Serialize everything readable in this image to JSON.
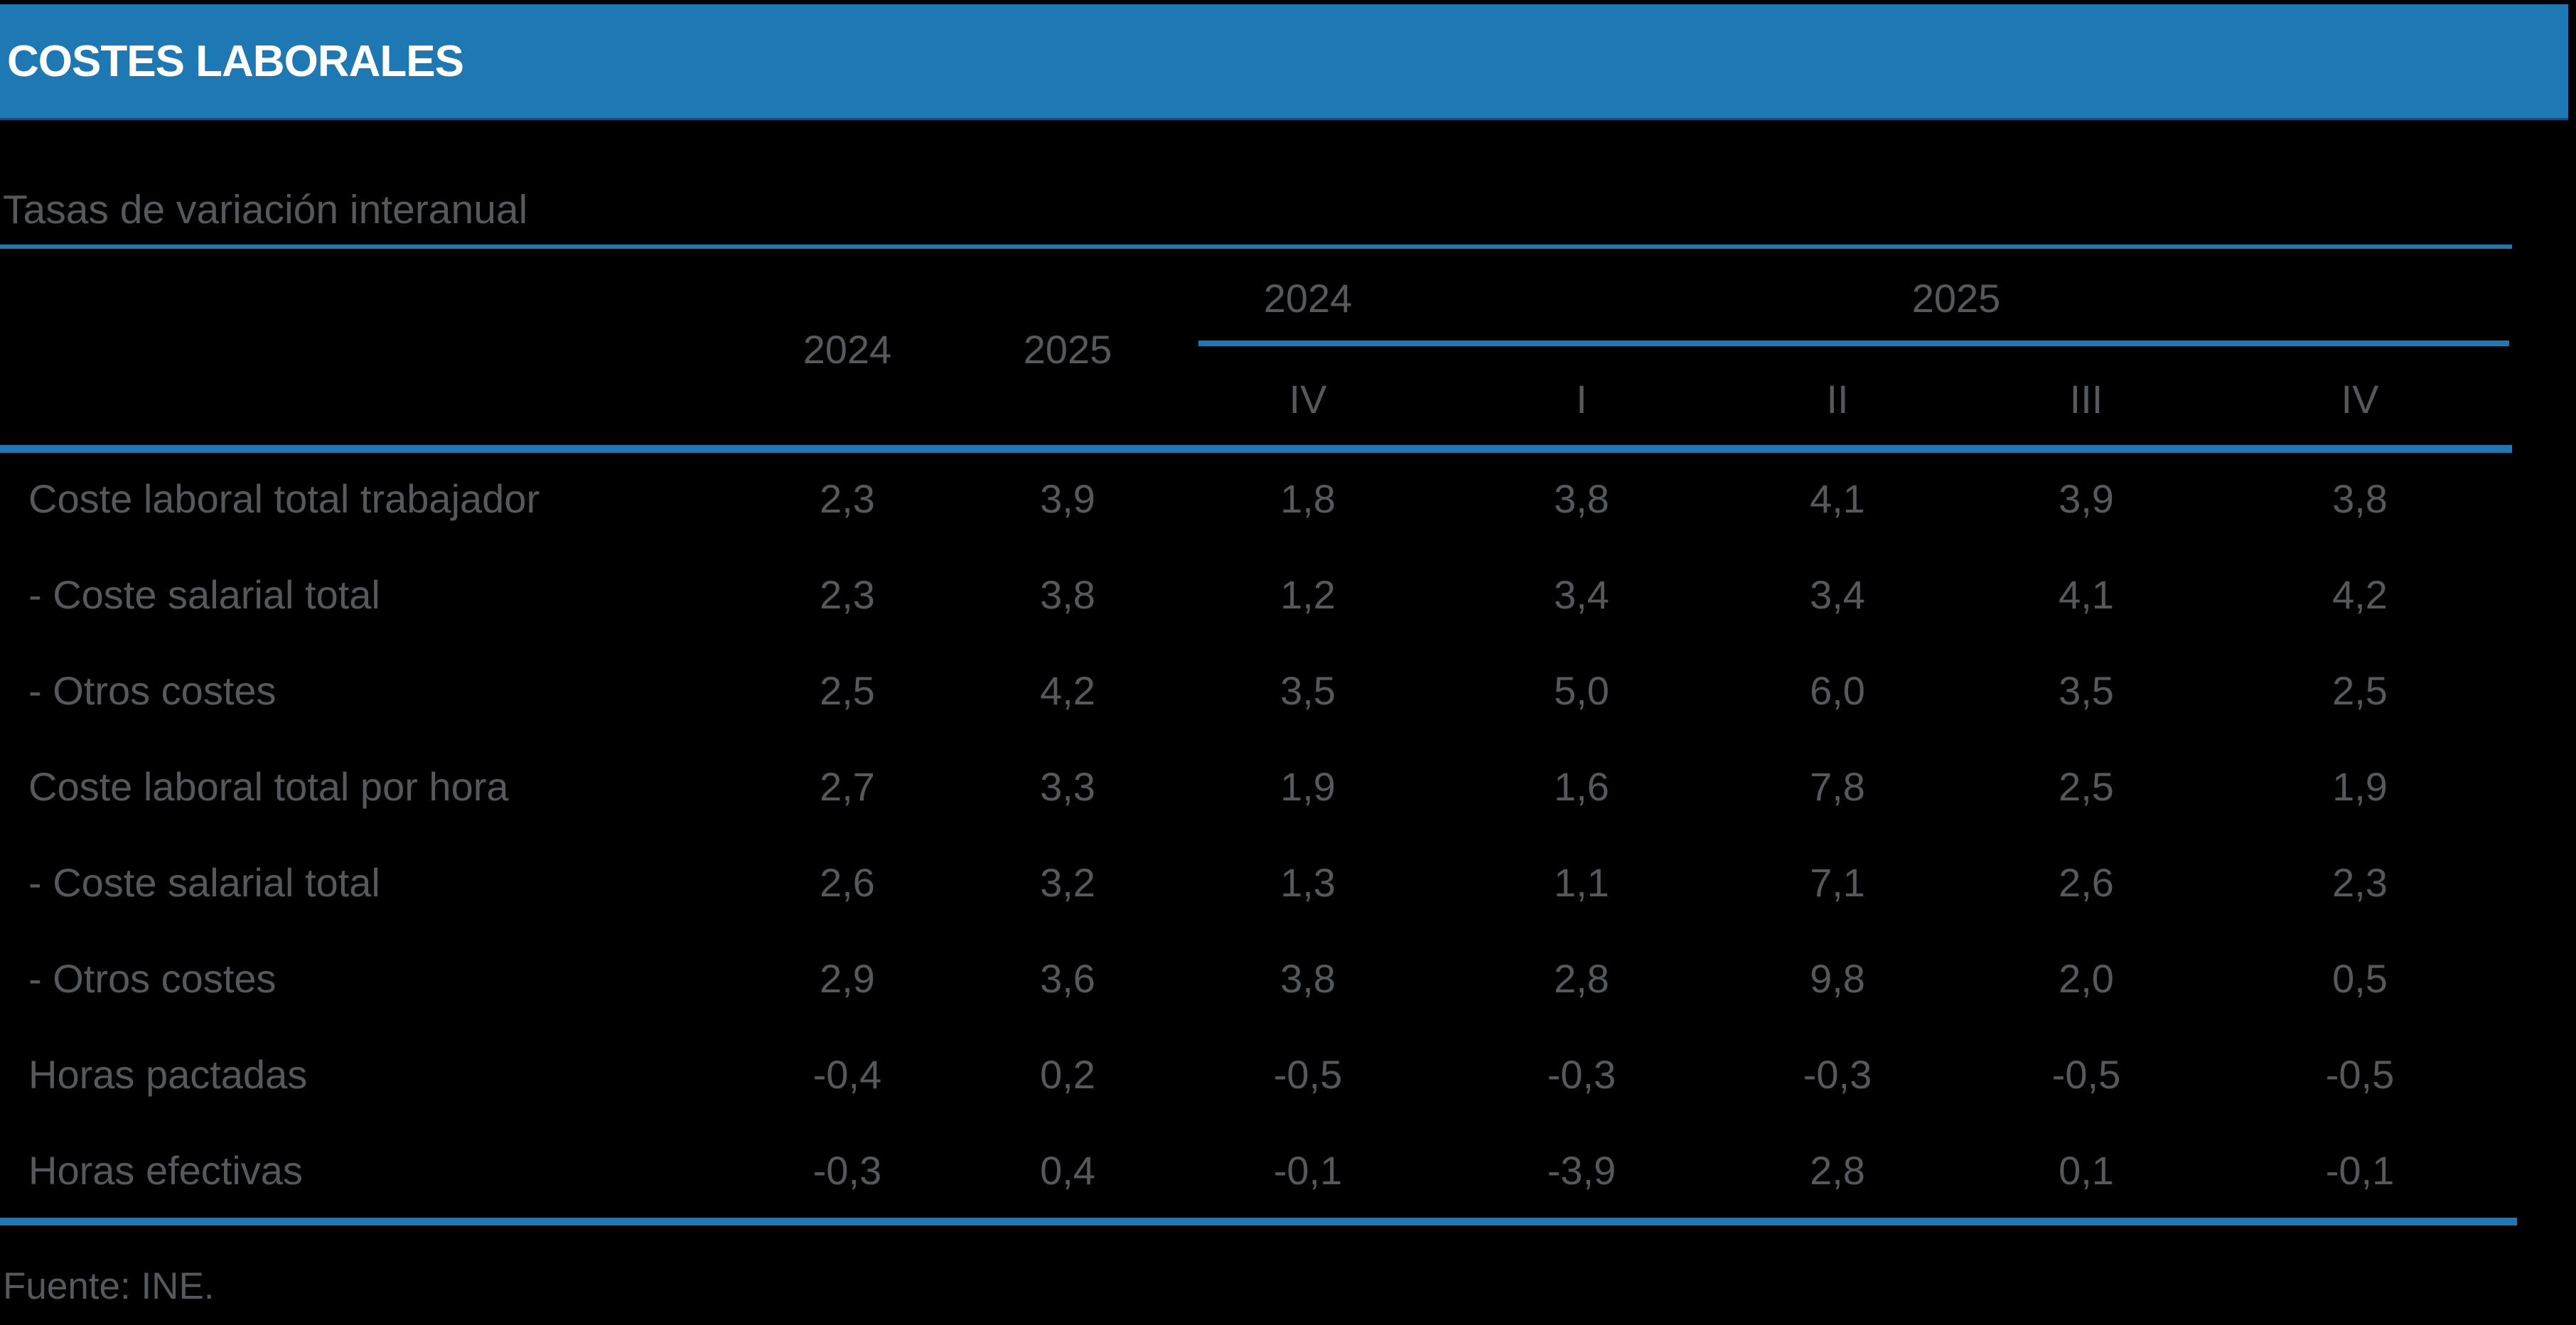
{
  "header": {
    "title": "COSTES LABORALES"
  },
  "subtitle": "Tasas de variación interanual",
  "table": {
    "annual": [
      "2024",
      "2025"
    ],
    "groups": [
      {
        "year": "2024"
      },
      {
        "year": "2025"
      }
    ],
    "quarters": [
      "IV",
      "I",
      "II",
      "III",
      "IV"
    ],
    "rows": [
      {
        "label": "Coste laboral total trabajador",
        "values": [
          "2,3",
          "3,9",
          "1,8",
          "3,8",
          "4,1",
          "3,9",
          "3,8"
        ]
      },
      {
        "label": "- Coste salarial total",
        "values": [
          "2,3",
          "3,8",
          "1,2",
          "3,4",
          "3,4",
          "4,1",
          "4,2"
        ]
      },
      {
        "label": "- Otros costes",
        "values": [
          "2,5",
          "4,2",
          "3,5",
          "5,0",
          "6,0",
          "3,5",
          "2,5"
        ]
      },
      {
        "label": "Coste laboral total por hora",
        "values": [
          "2,7",
          "3,3",
          "1,9",
          "1,6",
          "7,8",
          "2,5",
          "1,9"
        ]
      },
      {
        "label": "- Coste salarial total",
        "values": [
          "2,6",
          "3,2",
          "1,3",
          "1,1",
          "7,1",
          "2,6",
          "2,3"
        ]
      },
      {
        "label": "- Otros costes",
        "values": [
          "2,9",
          "3,6",
          "3,8",
          "2,8",
          "9,8",
          "2,0",
          "0,5"
        ]
      },
      {
        "label": "Horas pactadas",
        "values": [
          "-0,4",
          "0,2",
          "-0,5",
          "-0,3",
          "-0,3",
          "-0,5",
          "-0,5"
        ]
      },
      {
        "label": "Horas efectivas",
        "values": [
          "-0,3",
          "0,4",
          "-0,1",
          "-3,9",
          "2,8",
          "0,1",
          "-0,1"
        ]
      }
    ]
  },
  "footer": {
    "source": "Fuente: INE."
  },
  "colors": {
    "accent_blue": "#1E78B4",
    "title_text": "#FFFFFF",
    "body_text_gray": "#55595C",
    "background": "#000000"
  },
  "chart_data": {
    "type": "table",
    "title": "COSTES LABORALES",
    "subtitle": "Tasas de variación interanual",
    "source": "Fuente: INE.",
    "column_groups": [
      "Anual 2024",
      "Anual 2025",
      "2024 IV",
      "2025 I",
      "2025 II",
      "2025 III",
      "2025 IV"
    ],
    "rows": [
      {
        "label": "Coste laboral total trabajador",
        "values": [
          2.3,
          3.9,
          1.8,
          3.8,
          4.1,
          3.9,
          3.8
        ]
      },
      {
        "label": "- Coste salarial total",
        "values": [
          2.3,
          3.8,
          1.2,
          3.4,
          3.4,
          4.1,
          4.2
        ]
      },
      {
        "label": "- Otros costes",
        "values": [
          2.5,
          4.2,
          3.5,
          5.0,
          6.0,
          3.5,
          2.5
        ]
      },
      {
        "label": "Coste laboral total por hora",
        "values": [
          2.7,
          3.3,
          1.9,
          1.6,
          7.8,
          2.5,
          1.9
        ]
      },
      {
        "label": "- Coste salarial total",
        "values": [
          2.6,
          3.2,
          1.3,
          1.1,
          7.1,
          2.6,
          2.3
        ]
      },
      {
        "label": "- Otros costes",
        "values": [
          2.9,
          3.6,
          3.8,
          2.8,
          9.8,
          2.0,
          0.5
        ]
      },
      {
        "label": "Horas pactadas",
        "values": [
          -0.4,
          0.2,
          -0.5,
          -0.3,
          -0.3,
          -0.5,
          -0.5
        ]
      },
      {
        "label": "Horas efectivas",
        "values": [
          -0.3,
          0.4,
          -0.1,
          -3.9,
          2.8,
          0.1,
          -0.1
        ]
      }
    ],
    "units": "% tasa de variación interanual"
  }
}
